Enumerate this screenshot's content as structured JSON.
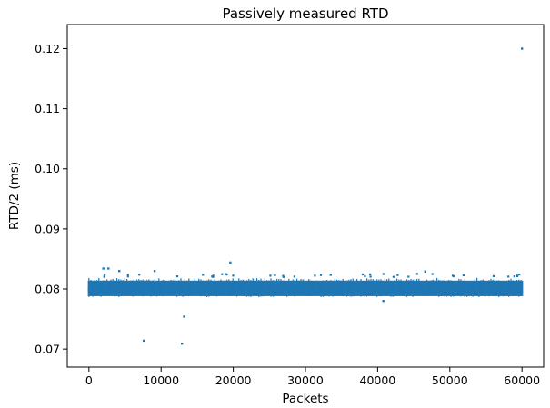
{
  "chart_data": {
    "type": "scatter",
    "title": "Passively measured RTD",
    "xlabel": "Packets",
    "ylabel": "RTD/2 (ms)",
    "xlim": [
      -3000,
      63000
    ],
    "ylim": [
      0.067,
      0.124
    ],
    "xticks": [
      0,
      10000,
      20000,
      30000,
      40000,
      50000,
      60000
    ],
    "xtick_labels": [
      "0",
      "10000",
      "20000",
      "30000",
      "40000",
      "50000",
      "60000"
    ],
    "yticks": [
      0.07,
      0.08,
      0.09,
      0.1,
      0.11,
      0.12
    ],
    "ytick_labels": [
      "0.07",
      "0.08",
      "0.09",
      "0.10",
      "0.11",
      "0.12"
    ],
    "grid": false,
    "color": "#1f77b4",
    "series": [
      {
        "dense_band": {
          "x_range": [
            0,
            60000
          ],
          "y_center": 0.08,
          "y_range": [
            0.0785,
            0.082
          ]
        },
        "points": [
          {
            "x": 0,
            "y": 0.08
          },
          {
            "x": 2000,
            "y": 0.0834
          },
          {
            "x": 2700,
            "y": 0.0834
          },
          {
            "x": 4200,
            "y": 0.083
          },
          {
            "x": 7600,
            "y": 0.0714
          },
          {
            "x": 9100,
            "y": 0.083
          },
          {
            "x": 12900,
            "y": 0.0709
          },
          {
            "x": 13200,
            "y": 0.0754
          },
          {
            "x": 19600,
            "y": 0.0844
          },
          {
            "x": 40800,
            "y": 0.078
          },
          {
            "x": 46600,
            "y": 0.0829
          },
          {
            "x": 60000,
            "y": 0.12
          }
        ]
      }
    ]
  }
}
